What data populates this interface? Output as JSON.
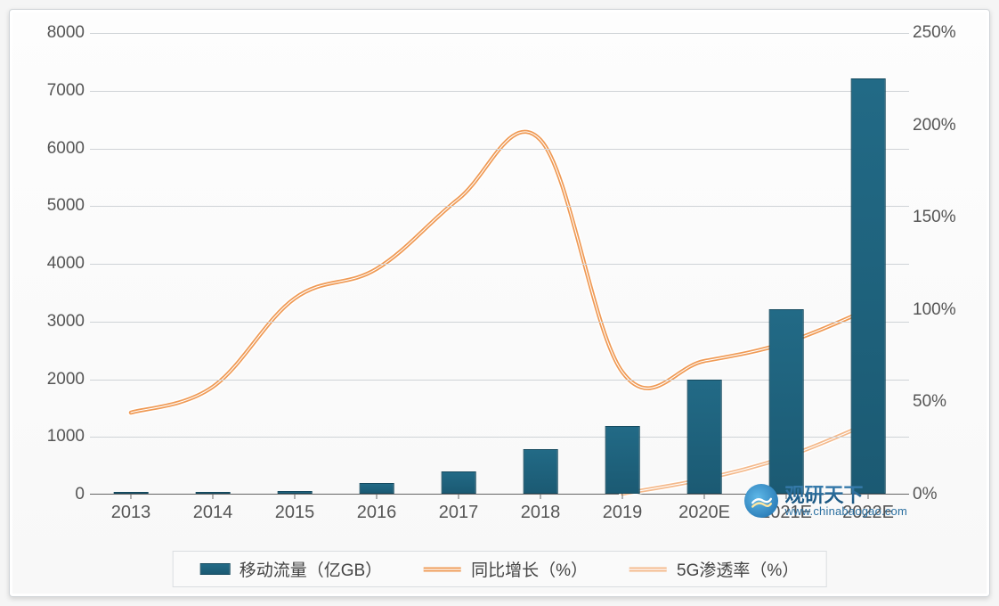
{
  "chart": {
    "type": "bar+line-dual-axis",
    "background_color": "#fafafa",
    "grid_color": "#cfd3d7",
    "axis_color": "#666666",
    "tick_fontsize": 19,
    "label_fontsize": 20,
    "categories": [
      "2013",
      "2014",
      "2015",
      "2016",
      "2017",
      "2018",
      "2019",
      "2020E",
      "2021E",
      "2022E"
    ],
    "y_left": {
      "min": 0,
      "max": 8000,
      "step": 1000
    },
    "y_right": {
      "min": 0,
      "max": 2.5,
      "step": 0.5,
      "labels": [
        "0%",
        "50%",
        "100%",
        "150%",
        "200%",
        "250%"
      ]
    },
    "bars": {
      "label": "移动流量（亿GB）",
      "color_top": "#226a86",
      "color_bottom": "#1b5a73",
      "border_color": "#154a5f",
      "width_ratio": 0.42,
      "values": [
        10,
        25,
        45,
        180,
        380,
        780,
        1180,
        1980,
        3200,
        7200
      ]
    },
    "line_growth": {
      "label": "同比增长（%）",
      "color": "#ef9a55",
      "stroke_width": 4.5,
      "double_stroke": true,
      "values_pct_right_axis": [
        44,
        58,
        106,
        122,
        160,
        192,
        66,
        72,
        82,
        100
      ]
    },
    "line_5g": {
      "label": "5G渗透率（%）",
      "color": "#f4b98b",
      "stroke_width": 4.5,
      "double_stroke": true,
      "start_index": 6,
      "values_pct_right_axis": [
        0,
        8,
        20,
        38
      ]
    }
  },
  "legend": {
    "items": [
      {
        "kind": "bar",
        "label": "移动流量（亿GB）"
      },
      {
        "kind": "line",
        "label": "同比增长（%）",
        "color": "#ef9a55"
      },
      {
        "kind": "line",
        "label": "5G渗透率（%）",
        "color": "#f4b98b"
      }
    ]
  },
  "watermark": {
    "brand_cn": "观研天下",
    "url": "www.chinabaogao.com"
  }
}
